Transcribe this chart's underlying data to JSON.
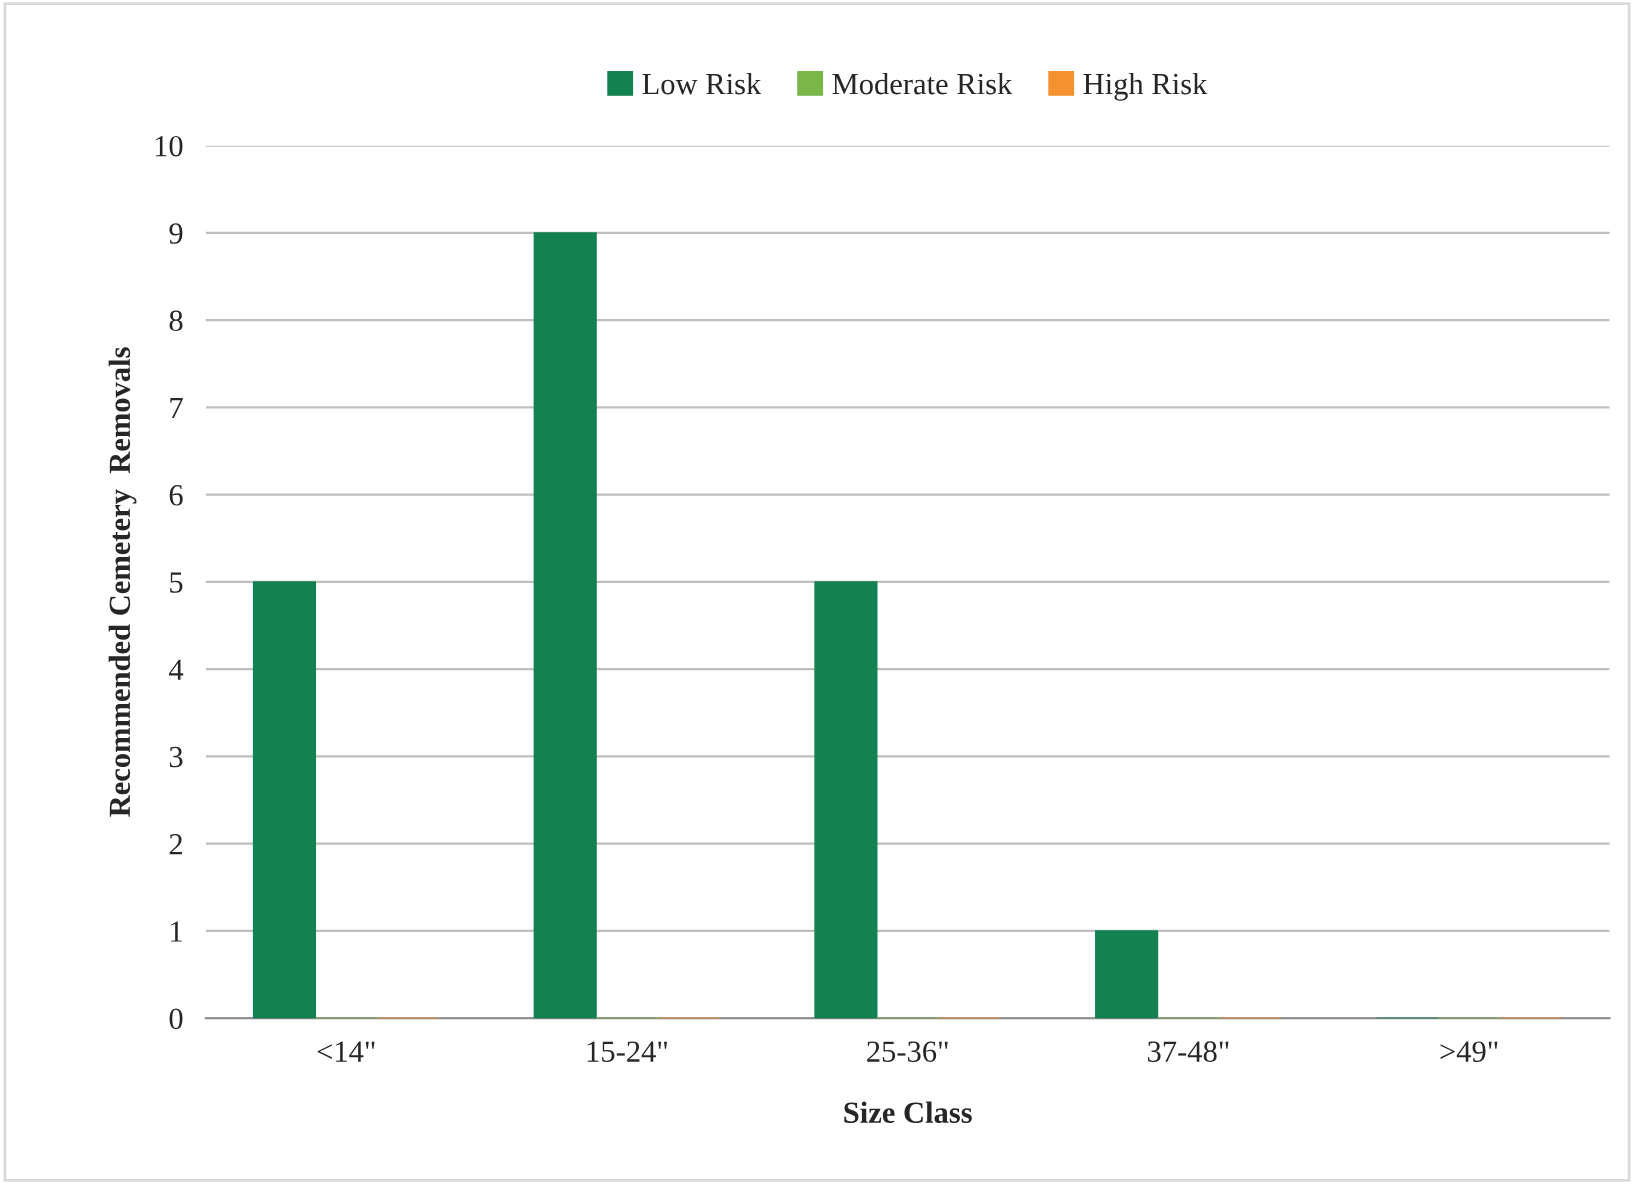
{
  "chart_data": {
    "type": "bar",
    "xlabel": "Size Class",
    "ylabel": "Recommended Cemetery  Removals",
    "categories": [
      "<14\"",
      "15-24\"",
      "25-36\"",
      "37-48\"",
      ">49\""
    ],
    "series": [
      {
        "name": "Low Risk",
        "color": "#138150",
        "values": [
          5,
          9,
          5,
          1,
          0
        ]
      },
      {
        "name": "Moderate Risk",
        "color": "#7ab648",
        "values": [
          0,
          0,
          0,
          0,
          0
        ]
      },
      {
        "name": "High Risk",
        "color": "#f5922f",
        "values": [
          0,
          0,
          0,
          0,
          0
        ]
      }
    ],
    "ylim": [
      0,
      10
    ],
    "yticks": [
      0,
      1,
      2,
      3,
      4,
      5,
      6,
      7,
      8,
      9,
      10
    ],
    "grid": "y",
    "legend": "top"
  }
}
